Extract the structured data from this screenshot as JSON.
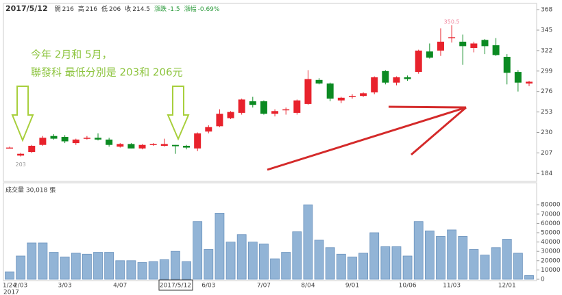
{
  "header": {
    "date": "2017/5/12",
    "items": [
      {
        "label": "開",
        "value": 216
      },
      {
        "label": "高",
        "value": 216
      },
      {
        "label": "低",
        "value": 206
      },
      {
        "label": "收",
        "value": 214.5
      },
      {
        "label": "漲跌",
        "value": -1.5
      },
      {
        "label": "漲幅",
        "value": "-0.69%"
      }
    ]
  },
  "chart_data": [
    {
      "type": "candlestick",
      "annotations": [
        "今年 2月和 5月，",
        "聯發科 最低分別是 203和 206元"
      ],
      "low_label": "203",
      "high_label": "350.5",
      "categories": [
        "1/24",
        "2/03",
        null,
        null,
        null,
        "3/03",
        null,
        null,
        null,
        null,
        "4/07",
        null,
        null,
        null,
        null,
        "2017/5/12",
        null,
        null,
        "6/03",
        null,
        null,
        null,
        null,
        "7/07",
        null,
        null,
        null,
        "8/04",
        null,
        null,
        null,
        "9/01",
        null,
        null,
        null,
        null,
        "10/06",
        null,
        null,
        null,
        "11/03",
        null,
        null,
        null,
        null,
        "12/01",
        null,
        null
      ],
      "year_label": "2017",
      "open": [
        213,
        204,
        208,
        216,
        226,
        225,
        218,
        223,
        224,
        222,
        214,
        217,
        212,
        216,
        215,
        216,
        215,
        212,
        231,
        237,
        246,
        252,
        265,
        265,
        251,
        255,
        252,
        262,
        289,
        285,
        266,
        270,
        271,
        275,
        299,
        286,
        292,
        298,
        321,
        322,
        336,
        332,
        325,
        334,
        328,
        315,
        298,
        285
      ],
      "high": [
        214,
        207,
        216,
        226,
        228,
        227,
        223,
        226,
        229,
        224,
        218,
        218,
        217,
        218,
        223,
        216,
        216,
        230,
        238,
        256,
        254,
        268,
        270,
        266,
        256,
        258,
        267,
        300,
        291,
        286,
        270,
        273,
        275,
        293,
        300,
        293,
        294,
        323,
        330,
        347,
        350.5,
        340,
        332,
        335,
        336,
        318,
        300,
        288
      ],
      "low": [
        212,
        203,
        207,
        215,
        222,
        218,
        216,
        222,
        221,
        214,
        213,
        212,
        211,
        215,
        214,
        206,
        211,
        209,
        229,
        236,
        245,
        250,
        258,
        250,
        248,
        250,
        250,
        261,
        284,
        265,
        263,
        268,
        270,
        273,
        284,
        283,
        288,
        296,
        313,
        316,
        331,
        306,
        320,
        318,
        316,
        284,
        276,
        282
      ],
      "close": [
        213,
        206,
        215,
        224,
        223,
        220,
        222,
        224,
        222,
        216,
        217,
        212,
        216,
        217,
        217,
        214.5,
        213,
        229,
        236,
        251,
        253,
        267,
        261,
        251,
        254,
        256,
        266,
        290,
        285,
        268,
        269,
        271,
        274,
        292,
        286,
        292,
        290,
        322,
        314,
        332,
        337,
        327,
        330,
        327,
        317,
        297,
        286,
        287
      ],
      "up_color": "#e8222c",
      "down_color": "#0b8a22",
      "ylim": [
        175,
        375
      ],
      "yticks": [
        184,
        207,
        230,
        253,
        276,
        299,
        322,
        345,
        368
      ]
    },
    {
      "type": "bar",
      "title": "成交量 30,018 張",
      "color": "#92b4d6",
      "values": [
        8000,
        25000,
        39000,
        39000,
        29000,
        24000,
        28000,
        27000,
        29000,
        29000,
        20000,
        20000,
        18000,
        19000,
        21000,
        30018,
        19000,
        62000,
        32000,
        71000,
        40000,
        48000,
        40000,
        38000,
        22000,
        29000,
        51000,
        80000,
        42000,
        34000,
        27000,
        24000,
        28000,
        50000,
        35000,
        35000,
        25000,
        62000,
        52000,
        46000,
        53000,
        46000,
        32000,
        26000,
        34000,
        43000,
        28000,
        4000
      ],
      "ylim": [
        0,
        100000
      ],
      "yticks": [
        0,
        10000,
        20000,
        30000,
        40000,
        50000,
        60000,
        70000,
        80000
      ]
    }
  ]
}
